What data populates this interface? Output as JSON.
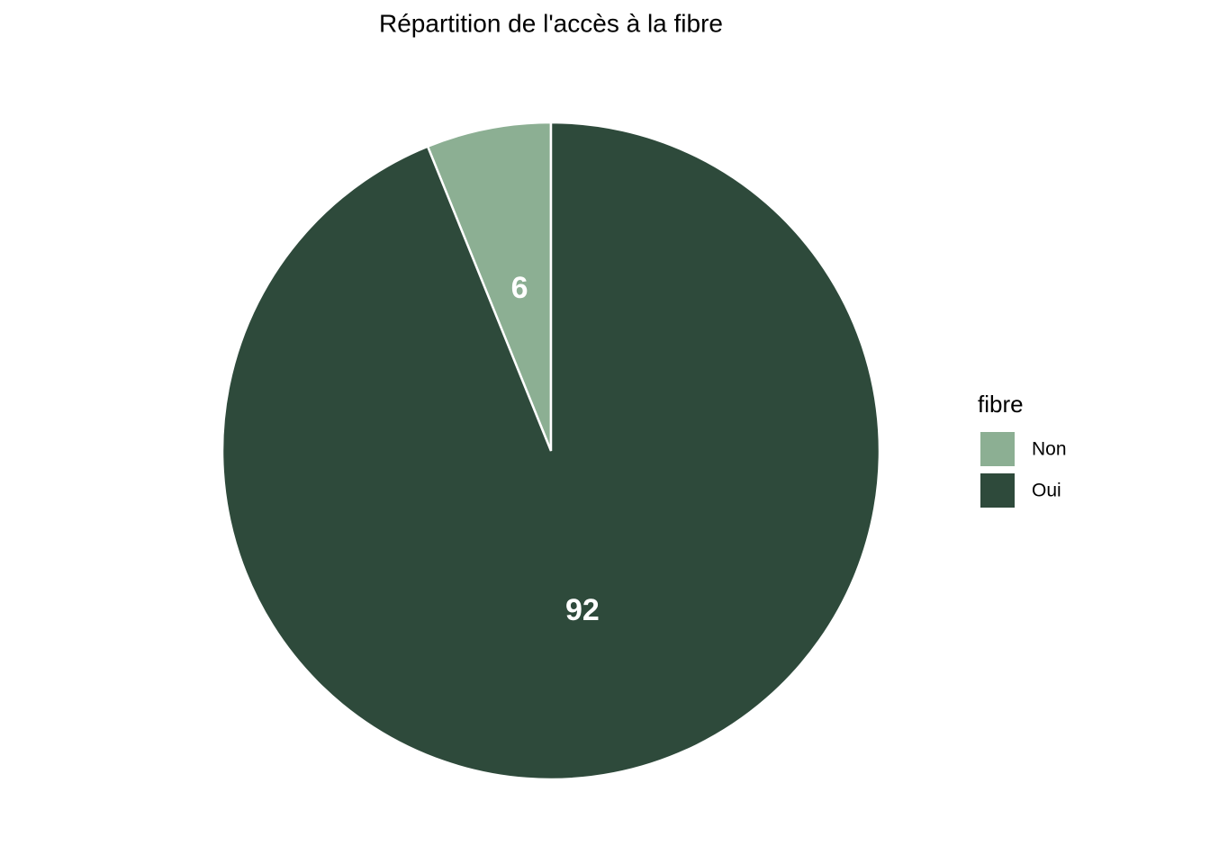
{
  "chart_data": {
    "type": "pie",
    "title": "Répartition de l'accès à la fibre",
    "categories": [
      "Non",
      "Oui"
    ],
    "values": [
      6,
      92
    ],
    "colors": [
      "#8caf93",
      "#2e4a3b"
    ],
    "legend_title": "fibre",
    "legend": "right"
  }
}
